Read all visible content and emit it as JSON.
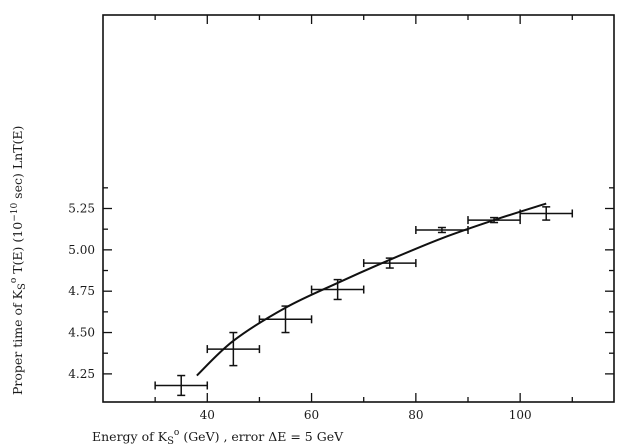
{
  "chart_data": {
    "type": "scatter",
    "xlabel": "Energy of K",
    "xlabel_sub": "S",
    "xlabel_sup": "o",
    "xlabel_rest": "  (GeV)  ,  error  ΔE = 5 GeV",
    "ylabel": "Proper time of K",
    "ylabel_sub": "S",
    "ylabel_sup": "o",
    "ylabel_rest": " T(E)  (10",
    "ylabel_exp": "−10",
    "ylabel_end": " sec)  LnT(E)",
    "xlim": [
      20,
      118
    ],
    "ylim": [
      4.08,
      6.42
    ],
    "x_ticks": [
      40,
      60,
      80,
      100
    ],
    "x_tick_labels": [
      "40",
      "60",
      "80",
      "100"
    ],
    "y_ticks": [
      4.25,
      4.5,
      4.75,
      5.0,
      5.25
    ],
    "y_tick_labels": [
      "4.25",
      "4.50",
      "4.75",
      "5.00",
      "5.25"
    ],
    "grid": false,
    "points": [
      {
        "x": 35,
        "y": 4.18,
        "xerr": 5,
        "yerr": 0.06
      },
      {
        "x": 45,
        "y": 4.4,
        "xerr": 5,
        "yerr": 0.1
      },
      {
        "x": 55,
        "y": 4.58,
        "xerr": 5,
        "yerr": 0.08
      },
      {
        "x": 65,
        "y": 4.76,
        "xerr": 5,
        "yerr": 0.06
      },
      {
        "x": 75,
        "y": 4.92,
        "xerr": 5,
        "yerr": 0.03
      },
      {
        "x": 85,
        "y": 5.12,
        "xerr": 5,
        "yerr": 0.015
      },
      {
        "x": 95,
        "y": 5.18,
        "xerr": 5,
        "yerr": 0.015
      },
      {
        "x": 105,
        "y": 5.22,
        "xerr": 5,
        "yerr": 0.04
      }
    ],
    "fit_curve": [
      {
        "x": 38,
        "y": 4.24
      },
      {
        "x": 45,
        "y": 4.45
      },
      {
        "x": 55,
        "y": 4.65
      },
      {
        "x": 65,
        "y": 4.8
      },
      {
        "x": 75,
        "y": 4.94
      },
      {
        "x": 85,
        "y": 5.07
      },
      {
        "x": 95,
        "y": 5.18
      },
      {
        "x": 105,
        "y": 5.28
      }
    ]
  }
}
